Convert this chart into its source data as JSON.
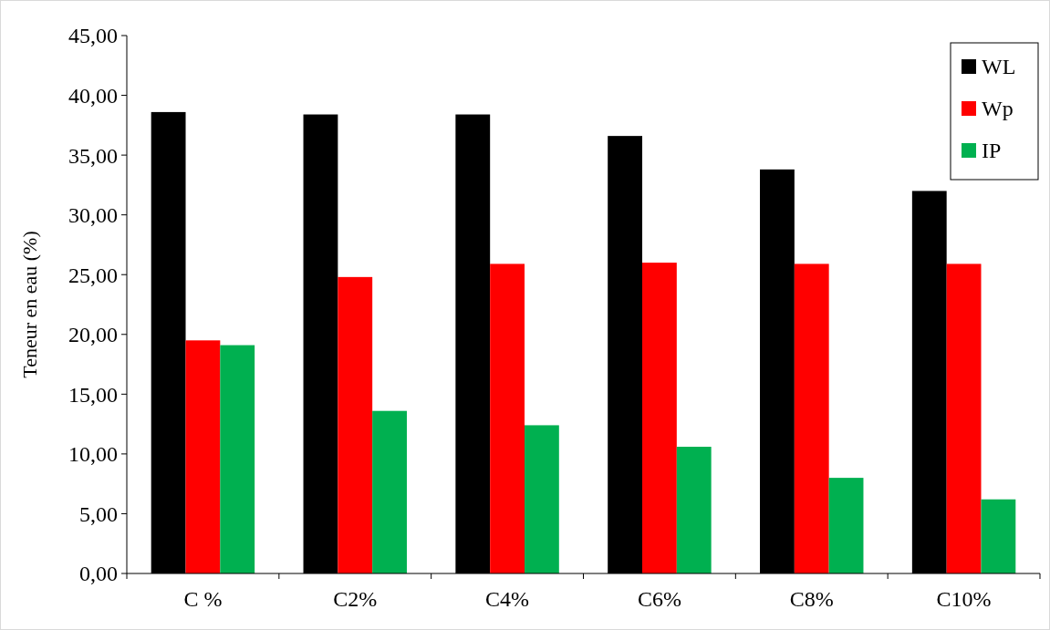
{
  "chart_data": {
    "type": "bar",
    "ylabel": "Teneur en eau (%)",
    "categories": [
      "C %",
      "C2%",
      "C4%",
      "C6%",
      "C8%",
      "C10%"
    ],
    "series": [
      {
        "name": "WL",
        "color": "#000000",
        "values": [
          38.6,
          38.4,
          38.4,
          36.6,
          33.8,
          32.0
        ]
      },
      {
        "name": "Wp",
        "color": "#ff0000",
        "values": [
          19.5,
          24.8,
          25.9,
          26.0,
          25.9,
          25.9
        ]
      },
      {
        "name": "IP",
        "color": "#00b050",
        "values": [
          19.1,
          13.6,
          12.4,
          10.6,
          8.0,
          6.2
        ]
      }
    ],
    "ylim": [
      0,
      45
    ],
    "yticks": [
      {
        "value": 0,
        "label": "0,00"
      },
      {
        "value": 5,
        "label": "5,00"
      },
      {
        "value": 10,
        "label": "10,00"
      },
      {
        "value": 15,
        "label": "15,00"
      },
      {
        "value": 20,
        "label": "20,00"
      },
      {
        "value": 25,
        "label": "25,00"
      },
      {
        "value": 30,
        "label": "30,00"
      },
      {
        "value": 35,
        "label": "35,00"
      },
      {
        "value": 40,
        "label": "40,00"
      },
      {
        "value": 45,
        "label": "45,00"
      }
    ],
    "legend": "top right",
    "grid": false
  }
}
